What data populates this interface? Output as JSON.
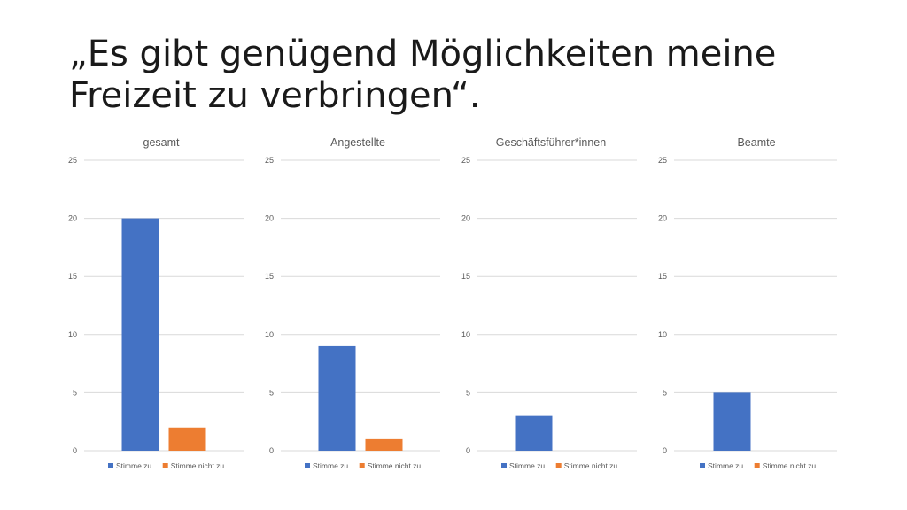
{
  "slide": {
    "title_line1": "„Es gibt genügend Möglichkeiten meine",
    "title_line2": "Freizeit zu verbringen“."
  },
  "colors": {
    "series1": "#4472C4",
    "series2": "#ED7D31",
    "grid": "#d9d9d9",
    "text": "#595959"
  },
  "chart_data": [
    {
      "type": "bar",
      "title": "gesamt",
      "categories": [
        ""
      ],
      "series": [
        {
          "name": "Stimme zu",
          "values": [
            20
          ]
        },
        {
          "name": "Stimme nicht zu",
          "values": [
            2
          ]
        }
      ],
      "ylim": [
        0,
        25
      ],
      "yticks": [
        0,
        5,
        10,
        15,
        20,
        25
      ],
      "grid": true,
      "legend": "bottom"
    },
    {
      "type": "bar",
      "title": "Angestellte",
      "categories": [
        ""
      ],
      "series": [
        {
          "name": "Stimme zu",
          "values": [
            9
          ]
        },
        {
          "name": "Stimme nicht zu",
          "values": [
            1
          ]
        }
      ],
      "ylim": [
        0,
        25
      ],
      "yticks": [
        0,
        5,
        10,
        15,
        20,
        25
      ],
      "grid": true,
      "legend": "bottom"
    },
    {
      "type": "bar",
      "title": "Geschäftsführer*innen",
      "categories": [
        ""
      ],
      "series": [
        {
          "name": "Stimme zu",
          "values": [
            3
          ]
        },
        {
          "name": "Stimme nicht zu",
          "values": [
            0
          ]
        }
      ],
      "ylim": [
        0,
        25
      ],
      "yticks": [
        0,
        5,
        10,
        15,
        20,
        25
      ],
      "grid": true,
      "legend": "bottom"
    },
    {
      "type": "bar",
      "title": "Beamte",
      "categories": [
        ""
      ],
      "series": [
        {
          "name": "Stimme zu",
          "values": [
            5
          ]
        },
        {
          "name": "Stimme nicht zu",
          "values": [
            0
          ]
        }
      ],
      "ylim": [
        0,
        25
      ],
      "yticks": [
        0,
        5,
        10,
        15,
        20,
        25
      ],
      "grid": true,
      "legend": "bottom"
    }
  ]
}
